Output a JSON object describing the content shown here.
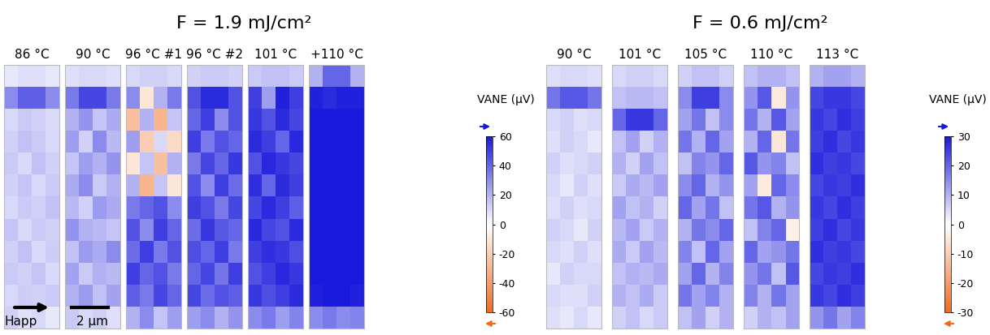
{
  "chart_data": [
    {
      "type": "heatmap",
      "title": "F = 1.9 mJ/cm²",
      "colorbar_label": "VANE (μV)",
      "colorbar": {
        "range": [
          -60,
          60
        ],
        "ticks": [
          -60,
          -40,
          -20,
          0,
          20,
          40,
          60
        ]
      },
      "colors": [
        "#f26b1d",
        "#ffffff",
        "#1a1adc"
      ],
      "tick_labels": false,
      "annotations": [
        "Happ",
        "2 μm"
      ],
      "panels": [
        {
          "title": "86 °C",
          "cells": [
            [
              6,
              8,
              8,
              6
            ],
            [
              30,
              42,
              42,
              30
            ],
            [
              10,
              14,
              12,
              9
            ],
            [
              12,
              16,
              14,
              10
            ],
            [
              14,
              10,
              16,
              12
            ],
            [
              12,
              15,
              10,
              14
            ],
            [
              10,
              14,
              12,
              16
            ],
            [
              15,
              10,
              14,
              12
            ],
            [
              12,
              16,
              10,
              13
            ],
            [
              14,
              12,
              15,
              10
            ],
            [
              10,
              13,
              12,
              14
            ],
            [
              12,
              8,
              10,
              6
            ]
          ]
        },
        {
          "title": "90 °C",
          "cells": [
            [
              8,
              10,
              10,
              8
            ],
            [
              35,
              48,
              48,
              35
            ],
            [
              20,
              28,
              15,
              22
            ],
            [
              25,
              12,
              30,
              18
            ],
            [
              15,
              25,
              20,
              28
            ],
            [
              22,
              30,
              14,
              20
            ],
            [
              18,
              12,
              26,
              22
            ],
            [
              28,
              20,
              18,
              15
            ],
            [
              16,
              26,
              22,
              30
            ],
            [
              24,
              14,
              20,
              18
            ],
            [
              20,
              26,
              16,
              24
            ],
            [
              14,
              10,
              12,
              8
            ]
          ]
        },
        {
          "title": "96 °C #1",
          "cells": [
            [
              10,
              12,
              12,
              10
            ],
            [
              30,
              -10,
              20,
              35
            ],
            [
              -25,
              20,
              -30,
              15
            ],
            [
              25,
              -20,
              10,
              -15
            ],
            [
              -10,
              15,
              -25,
              20
            ],
            [
              20,
              -30,
              15,
              -10
            ],
            [
              35,
              40,
              45,
              30
            ],
            [
              45,
              30,
              50,
              40
            ],
            [
              38,
              50,
              35,
              45
            ],
            [
              50,
              40,
              45,
              35
            ],
            [
              42,
              35,
              48,
              40
            ],
            [
              20,
              30,
              15,
              25
            ]
          ]
        },
        {
          "title": "96 °C #2",
          "cells": [
            [
              12,
              14,
              14,
              12
            ],
            [
              45,
              55,
              55,
              45
            ],
            [
              40,
              50,
              30,
              45
            ],
            [
              50,
              35,
              45,
              40
            ],
            [
              35,
              48,
              40,
              52
            ],
            [
              45,
              30,
              50,
              38
            ],
            [
              50,
              45,
              35,
              48
            ],
            [
              38,
              52,
              44,
              40
            ],
            [
              46,
              40,
              50,
              35
            ],
            [
              40,
              48,
              36,
              50
            ],
            [
              48,
              38,
              45,
              42
            ],
            [
              25,
              30,
              20,
              28
            ]
          ]
        },
        {
          "title": "101 °C",
          "cells": [
            [
              14,
              16,
              16,
              14
            ],
            [
              50,
              25,
              58,
              50
            ],
            [
              52,
              45,
              55,
              48
            ],
            [
              55,
              50,
              40,
              56
            ],
            [
              45,
              56,
              52,
              48
            ],
            [
              54,
              40,
              55,
              50
            ],
            [
              48,
              55,
              50,
              42
            ],
            [
              56,
              48,
              45,
              55
            ],
            [
              50,
              54,
              52,
              46
            ],
            [
              45,
              50,
              56,
              52
            ],
            [
              52,
              46,
              50,
              55
            ],
            [
              30,
              35,
              25,
              32
            ]
          ]
        },
        {
          "title": "+110 °C",
          "cells": [
            [
              20,
              40,
              40,
              20
            ],
            [
              58,
              55,
              58,
              58
            ],
            [
              60,
              60,
              60,
              60
            ],
            [
              60,
              60,
              60,
              60
            ],
            [
              60,
              60,
              60,
              60
            ],
            [
              60,
              60,
              60,
              60
            ],
            [
              60,
              60,
              60,
              60
            ],
            [
              60,
              60,
              60,
              60
            ],
            [
              60,
              60,
              60,
              60
            ],
            [
              60,
              60,
              60,
              60
            ],
            [
              58,
              60,
              60,
              58
            ],
            [
              30,
              35,
              30,
              32
            ]
          ]
        }
      ]
    },
    {
      "type": "heatmap",
      "title": "F = 0.6 mJ/cm²",
      "colorbar_label": "VANE (μV)",
      "colorbar": {
        "range": [
          -30,
          30
        ],
        "ticks": [
          -30,
          -20,
          -10,
          0,
          10,
          20,
          30
        ]
      },
      "colors": [
        "#f26b1d",
        "#ffffff",
        "#1a1adc"
      ],
      "tick_labels": false,
      "panels": [
        {
          "title": "90 °C",
          "cells": [
            [
              4,
              5,
              5,
              4
            ],
            [
              18,
              22,
              22,
              18
            ],
            [
              5,
              6,
              4,
              5
            ],
            [
              4,
              6,
              5,
              3
            ],
            [
              6,
              4,
              5,
              6
            ],
            [
              5,
              3,
              6,
              4
            ],
            [
              4,
              6,
              4,
              5
            ],
            [
              6,
              5,
              3,
              6
            ],
            [
              5,
              4,
              6,
              4
            ],
            [
              3,
              6,
              5,
              5
            ],
            [
              5,
              4,
              4,
              6
            ],
            [
              4,
              3,
              5,
              3
            ]
          ]
        },
        {
          "title": "101 °C",
          "cells": [
            [
              5,
              6,
              6,
              5
            ],
            [
              8,
              9,
              9,
              8
            ],
            [
              20,
              26,
              26,
              20
            ],
            [
              8,
              12,
              6,
              10
            ],
            [
              10,
              6,
              12,
              8
            ],
            [
              7,
              11,
              9,
              12
            ],
            [
              12,
              8,
              10,
              6
            ],
            [
              9,
              12,
              7,
              10
            ],
            [
              11,
              7,
              12,
              9
            ],
            [
              8,
              10,
              9,
              11
            ],
            [
              10,
              8,
              11,
              7
            ],
            [
              6,
              8,
              5,
              7
            ]
          ]
        },
        {
          "title": "105 °C",
          "cells": [
            [
              6,
              8,
              8,
              6
            ],
            [
              15,
              25,
              25,
              15
            ],
            [
              12,
              18,
              8,
              15
            ],
            [
              18,
              10,
              20,
              12
            ],
            [
              8,
              16,
              14,
              20
            ],
            [
              15,
              20,
              10,
              14
            ],
            [
              20,
              12,
              18,
              8
            ],
            [
              10,
              18,
              15,
              20
            ],
            [
              16,
              8,
              20,
              12
            ],
            [
              12,
              20,
              10,
              16
            ],
            [
              18,
              12,
              16,
              10
            ],
            [
              8,
              12,
              6,
              10
            ]
          ]
        },
        {
          "title": "110 °C",
          "cells": [
            [
              8,
              10,
              10,
              8
            ],
            [
              14,
              22,
              -4,
              14
            ],
            [
              18,
              10,
              22,
              12
            ],
            [
              10,
              20,
              -5,
              18
            ],
            [
              22,
              14,
              16,
              8
            ],
            [
              12,
              -4,
              20,
              15
            ],
            [
              18,
              22,
              10,
              14
            ],
            [
              8,
              16,
              20,
              -3
            ],
            [
              20,
              12,
              14,
              18
            ],
            [
              14,
              18,
              8,
              22
            ],
            [
              16,
              10,
              18,
              12
            ],
            [
              6,
              10,
              8,
              12
            ]
          ]
        },
        {
          "title": "113 °C",
          "cells": [
            [
              10,
              12,
              12,
              10
            ],
            [
              24,
              26,
              26,
              24
            ],
            [
              26,
              24,
              27,
              25
            ],
            [
              25,
              27,
              24,
              26
            ],
            [
              27,
              25,
              26,
              24
            ],
            [
              24,
              26,
              25,
              27
            ],
            [
              26,
              24,
              27,
              25
            ],
            [
              25,
              27,
              24,
              26
            ],
            [
              27,
              25,
              26,
              24
            ],
            [
              24,
              26,
              25,
              27
            ],
            [
              26,
              24,
              27,
              25
            ],
            [
              14,
              18,
              12,
              16
            ]
          ]
        }
      ]
    }
  ]
}
